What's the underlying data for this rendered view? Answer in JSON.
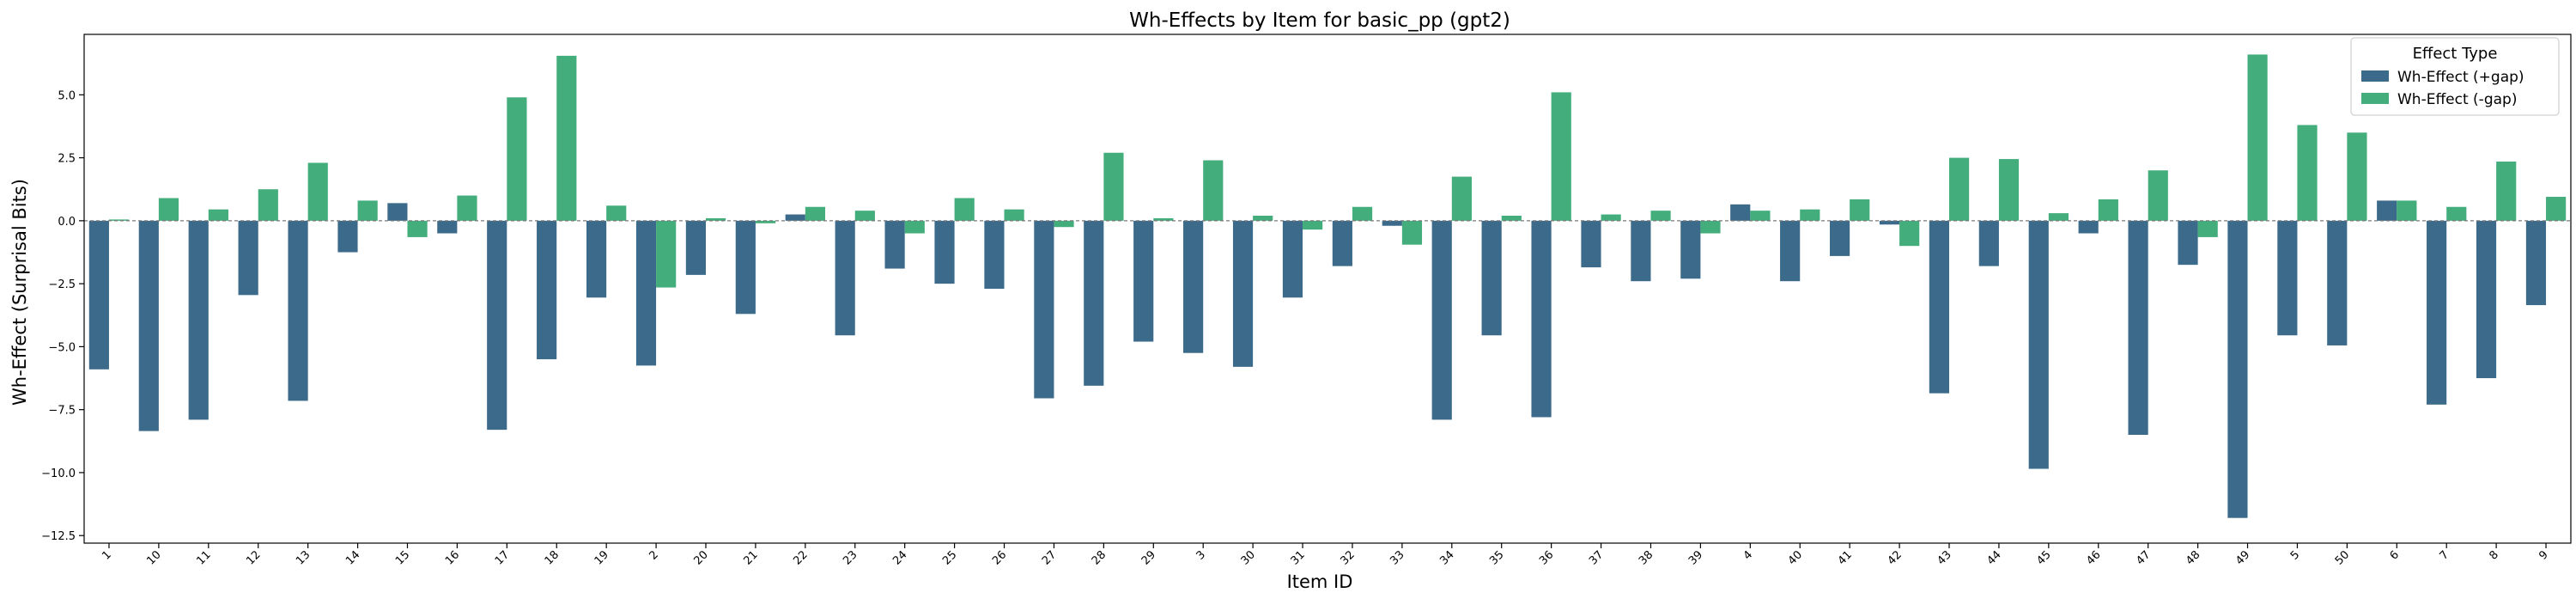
{
  "chart_data": {
    "type": "bar",
    "title": "Wh-Effects by Item for basic_pp (gpt2)",
    "xlabel": "Item ID",
    "ylabel": "Wh-Effect (Surprisal Bits)",
    "ylim": [
      -12.8,
      7.4
    ],
    "yticks": [
      -12.5,
      -10.0,
      -7.5,
      -5.0,
      -2.5,
      0.0,
      2.5,
      5.0
    ],
    "yticklabels": [
      "−12.5",
      "−10.0",
      "−7.5",
      "−5.0",
      "−2.5",
      "0.0",
      "2.5",
      "5.0"
    ],
    "grid": false,
    "legend": {
      "title": "Effect Type",
      "placement": "top-right"
    },
    "categories": [
      "1",
      "10",
      "11",
      "12",
      "13",
      "14",
      "15",
      "16",
      "17",
      "18",
      "19",
      "2",
      "20",
      "21",
      "22",
      "23",
      "24",
      "25",
      "26",
      "27",
      "28",
      "29",
      "3",
      "30",
      "31",
      "32",
      "33",
      "34",
      "35",
      "36",
      "37",
      "38",
      "39",
      "4",
      "40",
      "41",
      "42",
      "43",
      "44",
      "45",
      "46",
      "47",
      "48",
      "49",
      "5",
      "50",
      "6",
      "7",
      "8",
      "9"
    ],
    "series": [
      {
        "name": "Wh-Effect (+gap)",
        "color": "#3b6a8a",
        "values": [
          -5.9,
          -8.35,
          -7.9,
          -2.95,
          -7.15,
          -1.25,
          0.7,
          -0.5,
          -8.3,
          -5.5,
          -3.05,
          -5.75,
          -2.15,
          -3.7,
          0.25,
          -4.55,
          -1.9,
          -2.5,
          -2.7,
          -7.05,
          -6.55,
          -4.8,
          -5.25,
          -5.8,
          -3.05,
          -1.8,
          -0.2,
          -7.9,
          -4.55,
          -7.8,
          -1.85,
          -2.4,
          -2.3,
          0.65,
          -2.4,
          -1.4,
          -0.15,
          -6.85,
          -1.8,
          -9.85,
          -0.5,
          -8.5,
          -1.75,
          -11.8,
          -4.55,
          -4.95,
          0.8,
          -7.3,
          -6.25,
          -3.35
        ]
      },
      {
        "name": "Wh-Effect (-gap)",
        "color": "#43ad7b",
        "values": [
          0.05,
          0.9,
          0.45,
          1.25,
          2.3,
          0.8,
          -0.65,
          1.0,
          4.9,
          6.55,
          0.6,
          -2.65,
          0.1,
          -0.1,
          0.55,
          0.4,
          -0.5,
          0.9,
          0.45,
          -0.25,
          2.7,
          0.1,
          2.4,
          0.2,
          -0.35,
          0.55,
          -0.95,
          1.75,
          0.2,
          5.1,
          0.25,
          0.4,
          -0.5,
          0.4,
          0.45,
          0.85,
          -1.0,
          2.5,
          2.45,
          0.3,
          0.85,
          2.0,
          -0.65,
          6.6,
          3.8,
          3.5,
          0.8,
          0.55,
          2.35,
          0.95
        ]
      }
    ]
  }
}
